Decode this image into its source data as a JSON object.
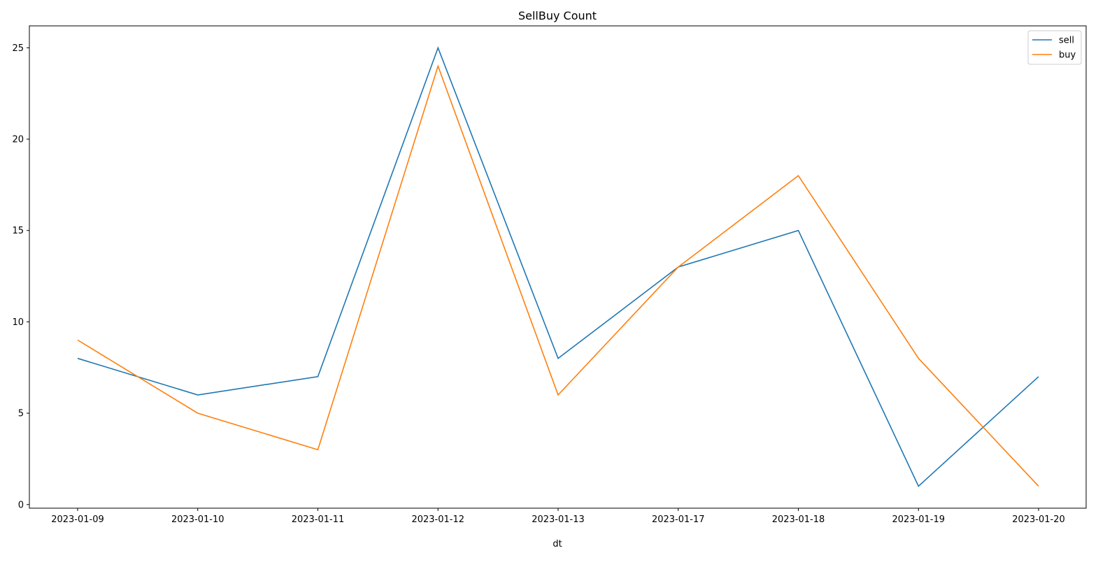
{
  "chart_data": {
    "type": "line",
    "title": "SellBuy Count",
    "xlabel": "dt",
    "ylabel": "",
    "categories": [
      "2023-01-09",
      "2023-01-10",
      "2023-01-11",
      "2023-01-12",
      "2023-01-13",
      "2023-01-17",
      "2023-01-18",
      "2023-01-19",
      "2023-01-20"
    ],
    "series": [
      {
        "name": "sell",
        "color": "#1f77b4",
        "values": [
          8,
          6,
          7,
          25,
          8,
          13,
          15,
          1,
          7
        ]
      },
      {
        "name": "buy",
        "color": "#ff7f0e",
        "values": [
          9,
          5,
          3,
          24,
          6,
          13,
          18,
          8,
          1
        ]
      }
    ],
    "yticks": [
      0,
      5,
      10,
      15,
      20,
      25
    ],
    "ylim": [
      -0.2,
      26.2
    ],
    "grid": false,
    "legend_position": "top-right"
  }
}
